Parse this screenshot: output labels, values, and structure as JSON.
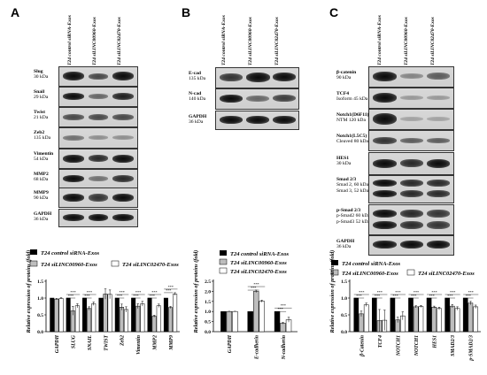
{
  "panels": {
    "A": {
      "letter": "A",
      "lanes": [
        "T24 control siRNA-Exos",
        "T24 siLINC00960-Exos",
        "T24 siLINC02470-Exos"
      ],
      "rows": [
        {
          "name": "Slug",
          "size": "30 kDa"
        },
        {
          "name": "Snail",
          "size": "29 kDa"
        },
        {
          "name": "Twist",
          "size": "21 kDa"
        },
        {
          "name": "Zeb2",
          "size": "135 kDa"
        },
        {
          "name": "Vimentin",
          "size": "54 kDa"
        },
        {
          "name": "MMP2",
          "size": "68 kDa"
        },
        {
          "name": "MMP9",
          "size": "90 kDa"
        },
        {
          "name": "GAPDH",
          "size": "36 kDa"
        }
      ]
    },
    "B": {
      "letter": "B",
      "lanes": [
        "T24 control siRNA-Exos",
        "T24 siLINC00960-Exos",
        "T24 siLINC02470-Exos"
      ],
      "rows": [
        {
          "name": "E-cad",
          "size": "135 kDa"
        },
        {
          "name": "N-cad",
          "size": "140 kDa"
        },
        {
          "name": "GAPDH",
          "size": "36 kDa"
        }
      ]
    },
    "C": {
      "letter": "C",
      "lanes": [
        "T24 control siRNA-Exos",
        "T24 siLINC00960-Exos",
        "T24 siLINC02470-Exos"
      ],
      "rows": [
        {
          "name": "β-catenin",
          "size": "90 kDa"
        },
        {
          "name": "TCF4",
          "size": "Isoform   45 kDa"
        },
        {
          "name": "Notch1(D6F11)",
          "size": "NTM 120 kDa"
        },
        {
          "name": "Notch1(L5C5)",
          "size": "Cleaved   80 kDa"
        },
        {
          "name": "HES1",
          "size": "30 kDa"
        },
        {
          "name": "Smad 2/3",
          "size": "Smad 2, 60 kDa",
          "size2": "Smad 3, 52 kDa"
        },
        {
          "name": "p-Smad 2/3",
          "size": "p-Smad2 60 kDa",
          "size2": "p-Smad3 52 kDa"
        },
        {
          "name": "GAPDH",
          "size": "36 kDa"
        }
      ]
    }
  },
  "legend": {
    "control": "T24 control siRNA-Exos",
    "si960": "T24 siLINC00960-Exos",
    "si2470": "T24 siLINC02470-Exos"
  },
  "chart_data": [
    {
      "type": "bar",
      "ylabel": "Relative expression of proteins (fold)",
      "ylim": [
        0,
        1.5
      ],
      "yticks": [
        "0.0",
        "0.5",
        "1.0",
        "1.5"
      ],
      "categories": [
        "GAPDH",
        "SLUG",
        "SNAIL",
        "TWIST",
        "Zeb2",
        "Vimentin",
        "MMP2",
        "MMP9"
      ],
      "series": [
        {
          "name": "T24 control siRNA-Exos",
          "values": [
            1.0,
            1.0,
            1.0,
            1.0,
            1.0,
            1.0,
            1.0,
            1.0
          ]
        },
        {
          "name": "T24 siLINC00960-Exos",
          "values": [
            0.97,
            0.62,
            0.69,
            1.12,
            0.73,
            0.76,
            0.46,
            0.72
          ]
        },
        {
          "name": "T24 siLINC02470-Exos",
          "values": [
            0.99,
            0.77,
            0.83,
            1.11,
            0.66,
            0.83,
            0.77,
            1.12
          ]
        }
      ],
      "errors": [
        [
          0,
          0,
          0,
          0,
          0,
          0,
          0,
          0
        ],
        [
          0.02,
          0.13,
          0.05,
          0.15,
          0.09,
          0.07,
          0.03,
          0.03
        ],
        [
          0.02,
          0.06,
          0.05,
          0.13,
          0.08,
          0.07,
          0.05,
          0.04
        ]
      ],
      "significance": [
        "",
        "***",
        "***",
        "",
        "***",
        "***",
        "***",
        "***"
      ]
    },
    {
      "type": "bar",
      "ylabel": "Relative expression of proteins (fold)",
      "ylim": [
        0,
        2.5
      ],
      "yticks": [
        "0.0",
        "0.5",
        "1.0",
        "1.5",
        "2.0",
        "2.5"
      ],
      "categories": [
        "GAPDH",
        "E-cadherin",
        "N-cadherin"
      ],
      "series": [
        {
          "name": "T24 control siRNA-Exos",
          "values": [
            1.0,
            1.0,
            1.0
          ]
        },
        {
          "name": "T24 siLINC00960-Exos",
          "values": [
            1.0,
            2.0,
            0.42
          ]
        },
        {
          "name": "T24 siLINC02470-Exos",
          "values": [
            1.0,
            1.51,
            0.59
          ]
        }
      ],
      "errors": [
        [
          0,
          0,
          0
        ],
        [
          0.01,
          0.06,
          0.04
        ],
        [
          0.01,
          0.05,
          0.12
        ]
      ],
      "significance": [
        "",
        "***",
        "***"
      ]
    },
    {
      "type": "bar",
      "ylabel": "Relative expression of proteins (fold)",
      "ylim": [
        0,
        1.5
      ],
      "yticks": [
        "0.0",
        "0.5",
        "1.0",
        "1.5"
      ],
      "categories": [
        "β-Catenin",
        "TCF4",
        "NOTCH1",
        "NOTCH1",
        "HES1",
        "SMAD2/3",
        "p-SMAD2/3"
      ],
      "series": [
        {
          "name": "T24 control siRNA-Exos",
          "values": [
            1.0,
            1.0,
            1.0,
            1.0,
            1.0,
            1.0,
            1.0
          ]
        },
        {
          "name": "T24 siLINC00960-Exos",
          "values": [
            0.53,
            0.33,
            0.35,
            0.74,
            0.73,
            0.76,
            0.85
          ]
        },
        {
          "name": "T24 siLINC02470-Exos",
          "values": [
            0.8,
            0.34,
            0.47,
            0.75,
            0.69,
            0.69,
            0.74
          ]
        }
      ],
      "errors": [
        [
          0,
          0,
          0,
          0,
          0,
          0,
          0
        ],
        [
          0.08,
          0.33,
          0.08,
          0.03,
          0.03,
          0.05,
          0.05
        ],
        [
          0.05,
          0.3,
          0.12,
          0.03,
          0.04,
          0.05,
          0.05
        ]
      ],
      "significance": [
        "***",
        "***",
        "***",
        "***",
        "***",
        "***",
        "***"
      ]
    }
  ]
}
